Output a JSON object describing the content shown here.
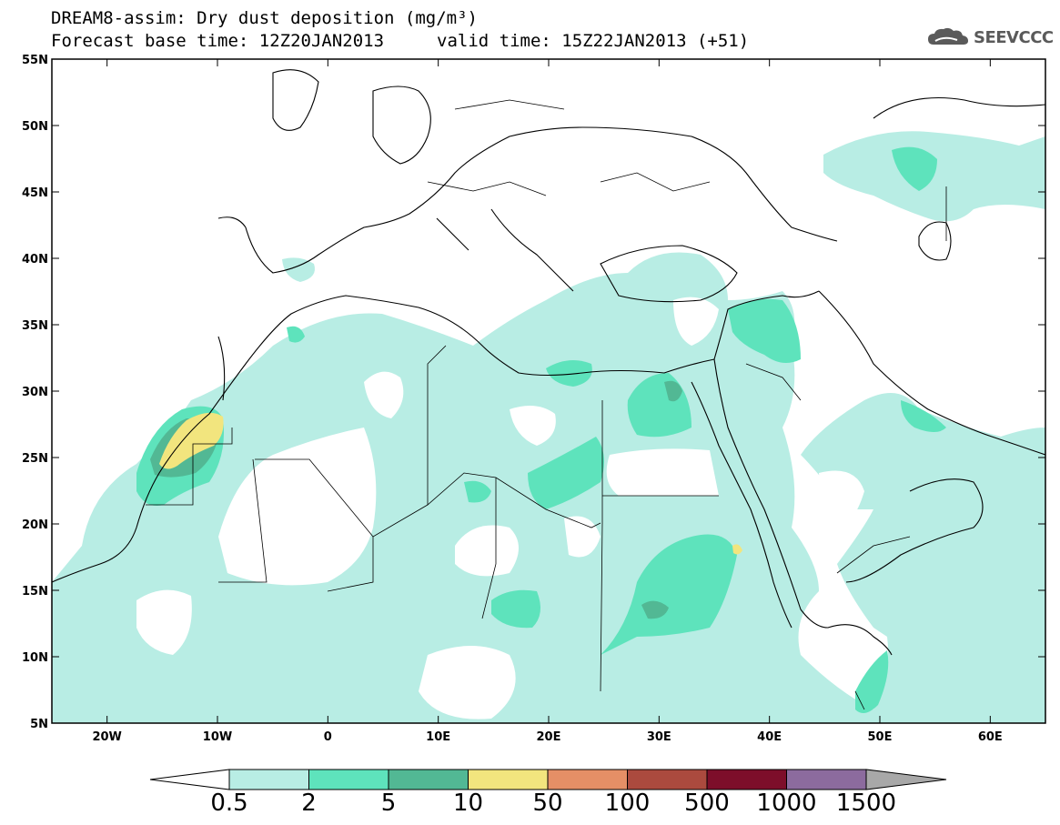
{
  "header": {
    "title_line1": "DREAM8-assim: Dry dust deposition (mg/m³)",
    "title_line2": "Forecast base time: 12Z20JAN2013",
    "valid_time": "valid time: 15Z22JAN2013 (+51)",
    "logo_text": "SEEVCCC",
    "logo_icon": "cloud-icon"
  },
  "map": {
    "lat_labels": [
      "55N",
      "50N",
      "45N",
      "40N",
      "35N",
      "30N",
      "25N",
      "20N",
      "15N",
      "10N",
      "5N"
    ],
    "lon_labels": [
      "20W",
      "10W",
      "0",
      "10E",
      "20E",
      "30E",
      "40E",
      "50E",
      "60E"
    ],
    "lat_range": [
      5,
      55
    ],
    "lon_range": [
      -25,
      65
    ]
  },
  "colorbar": {
    "levels": [
      "0.5",
      "2",
      "5",
      "10",
      "50",
      "100",
      "500",
      "1000",
      "1500"
    ],
    "colors": [
      "#b8ede4",
      "#5ee3bc",
      "#52b894",
      "#f2e57e",
      "#e58f66",
      "#ab4a3e",
      "#7d0e2a",
      "#8c6b9e"
    ],
    "under_color": "#ffffff",
    "over_color": "#a8a8a8"
  },
  "palette": {
    "light": "#b8ede4",
    "medium": "#5ee3bc",
    "dark": "#52b894",
    "yellow": "#f2e57e"
  }
}
